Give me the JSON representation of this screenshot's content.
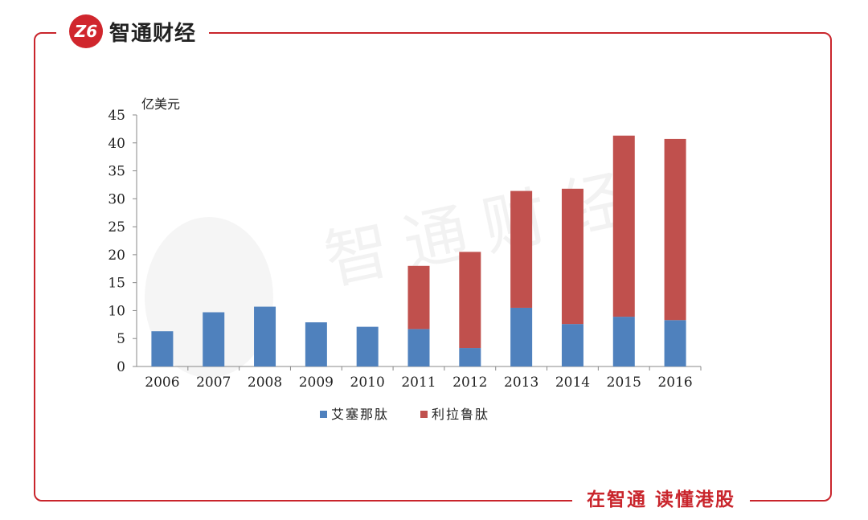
{
  "brand": {
    "logo_mark": "Z6",
    "name": "智通财经",
    "slogan": "在智通 读懂港股",
    "watermark": "智通财经"
  },
  "chart_data": {
    "type": "bar",
    "stacked": true,
    "ylabel": "亿美元",
    "categories": [
      "2006",
      "2007",
      "2008",
      "2009",
      "2010",
      "2011",
      "2012",
      "2013",
      "2014",
      "2015",
      "2016"
    ],
    "series": [
      {
        "name": "艾塞那肽",
        "color": "#4f81bd",
        "values": [
          6.3,
          9.7,
          10.7,
          7.9,
          7.1,
          6.7,
          3.3,
          10.5,
          7.6,
          8.9,
          8.3
        ]
      },
      {
        "name": "利拉鲁肽",
        "color": "#c0504d",
        "values": [
          0,
          0,
          0,
          0,
          0,
          11.3,
          17.2,
          20.9,
          24.2,
          32.4,
          32.4
        ]
      }
    ],
    "ylim": [
      0,
      45
    ],
    "yticks": [
      0,
      5,
      10,
      15,
      20,
      25,
      30,
      35,
      40,
      45
    ],
    "grid": false,
    "legend": "bottom"
  }
}
